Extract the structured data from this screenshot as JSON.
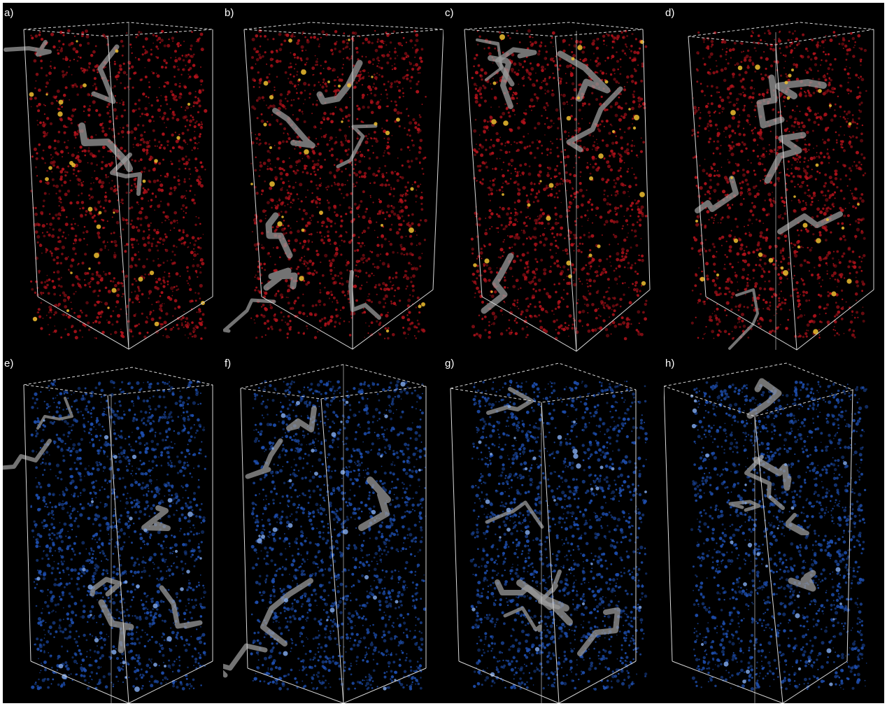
{
  "figure": {
    "panels": [
      {
        "label": "a)",
        "scheme": "red"
      },
      {
        "label": "b)",
        "scheme": "red"
      },
      {
        "label": "c)",
        "scheme": "red"
      },
      {
        "label": "d)",
        "scheme": "red"
      },
      {
        "label": "e)",
        "scheme": "blue"
      },
      {
        "label": "f)",
        "scheme": "blue"
      },
      {
        "label": "g)",
        "scheme": "blue"
      },
      {
        "label": "h)",
        "scheme": "blue"
      }
    ],
    "colors": {
      "background": "#000000",
      "box_lines": "#d8d8d8",
      "red_particles": "#b3121b",
      "red_highlight": "#f0c030",
      "tube_gray": "#9a9a9a",
      "blue_particles": "#1e4fb0",
      "blue_highlight": "#7fa6e6"
    }
  }
}
